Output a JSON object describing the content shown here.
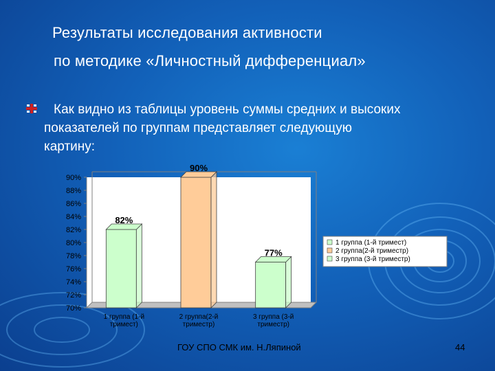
{
  "slide": {
    "title_line1": "Результаты исследования  активности",
    "title_line2": "по методике  «Личностный дифференциал»",
    "body_line1": "Как видно из таблицы уровень суммы средних и высоких",
    "body_line2": "показателей по группам представляет следующую",
    "body_line3": "картину:",
    "footer": "ГОУ  СПО СМК им. Н.Ляпиной",
    "page_number": "44"
  },
  "colors": {
    "background": "#1260b8",
    "title": "#ffffff",
    "bar_1": "#ccffcc",
    "bar_2": "#ffcc99",
    "bar_3": "#ccffcc"
  },
  "chart_data": {
    "type": "bar",
    "categories": [
      [
        "1 группа (1-й",
        "тримест)"
      ],
      [
        "2 группа(2-й",
        "триместр)"
      ],
      [
        "3 группа (3-й",
        "триместр)"
      ]
    ],
    "values": [
      82,
      90,
      77
    ],
    "data_labels": [
      "82%",
      "90%",
      "77%"
    ],
    "colors": [
      "#ccffcc",
      "#ffcc99",
      "#ccffcc"
    ],
    "y_ticks": [
      "70%",
      "72%",
      "74%",
      "76%",
      "78%",
      "80%",
      "82%",
      "84%",
      "86%",
      "88%",
      "90%"
    ],
    "ylim": [
      70,
      90
    ],
    "grid": false,
    "legend_position": "right",
    "legend": [
      "1 группа (1-й тримест)",
      "2 группа(2-й триместр)",
      "3 группа (3-й триместр)"
    ]
  }
}
